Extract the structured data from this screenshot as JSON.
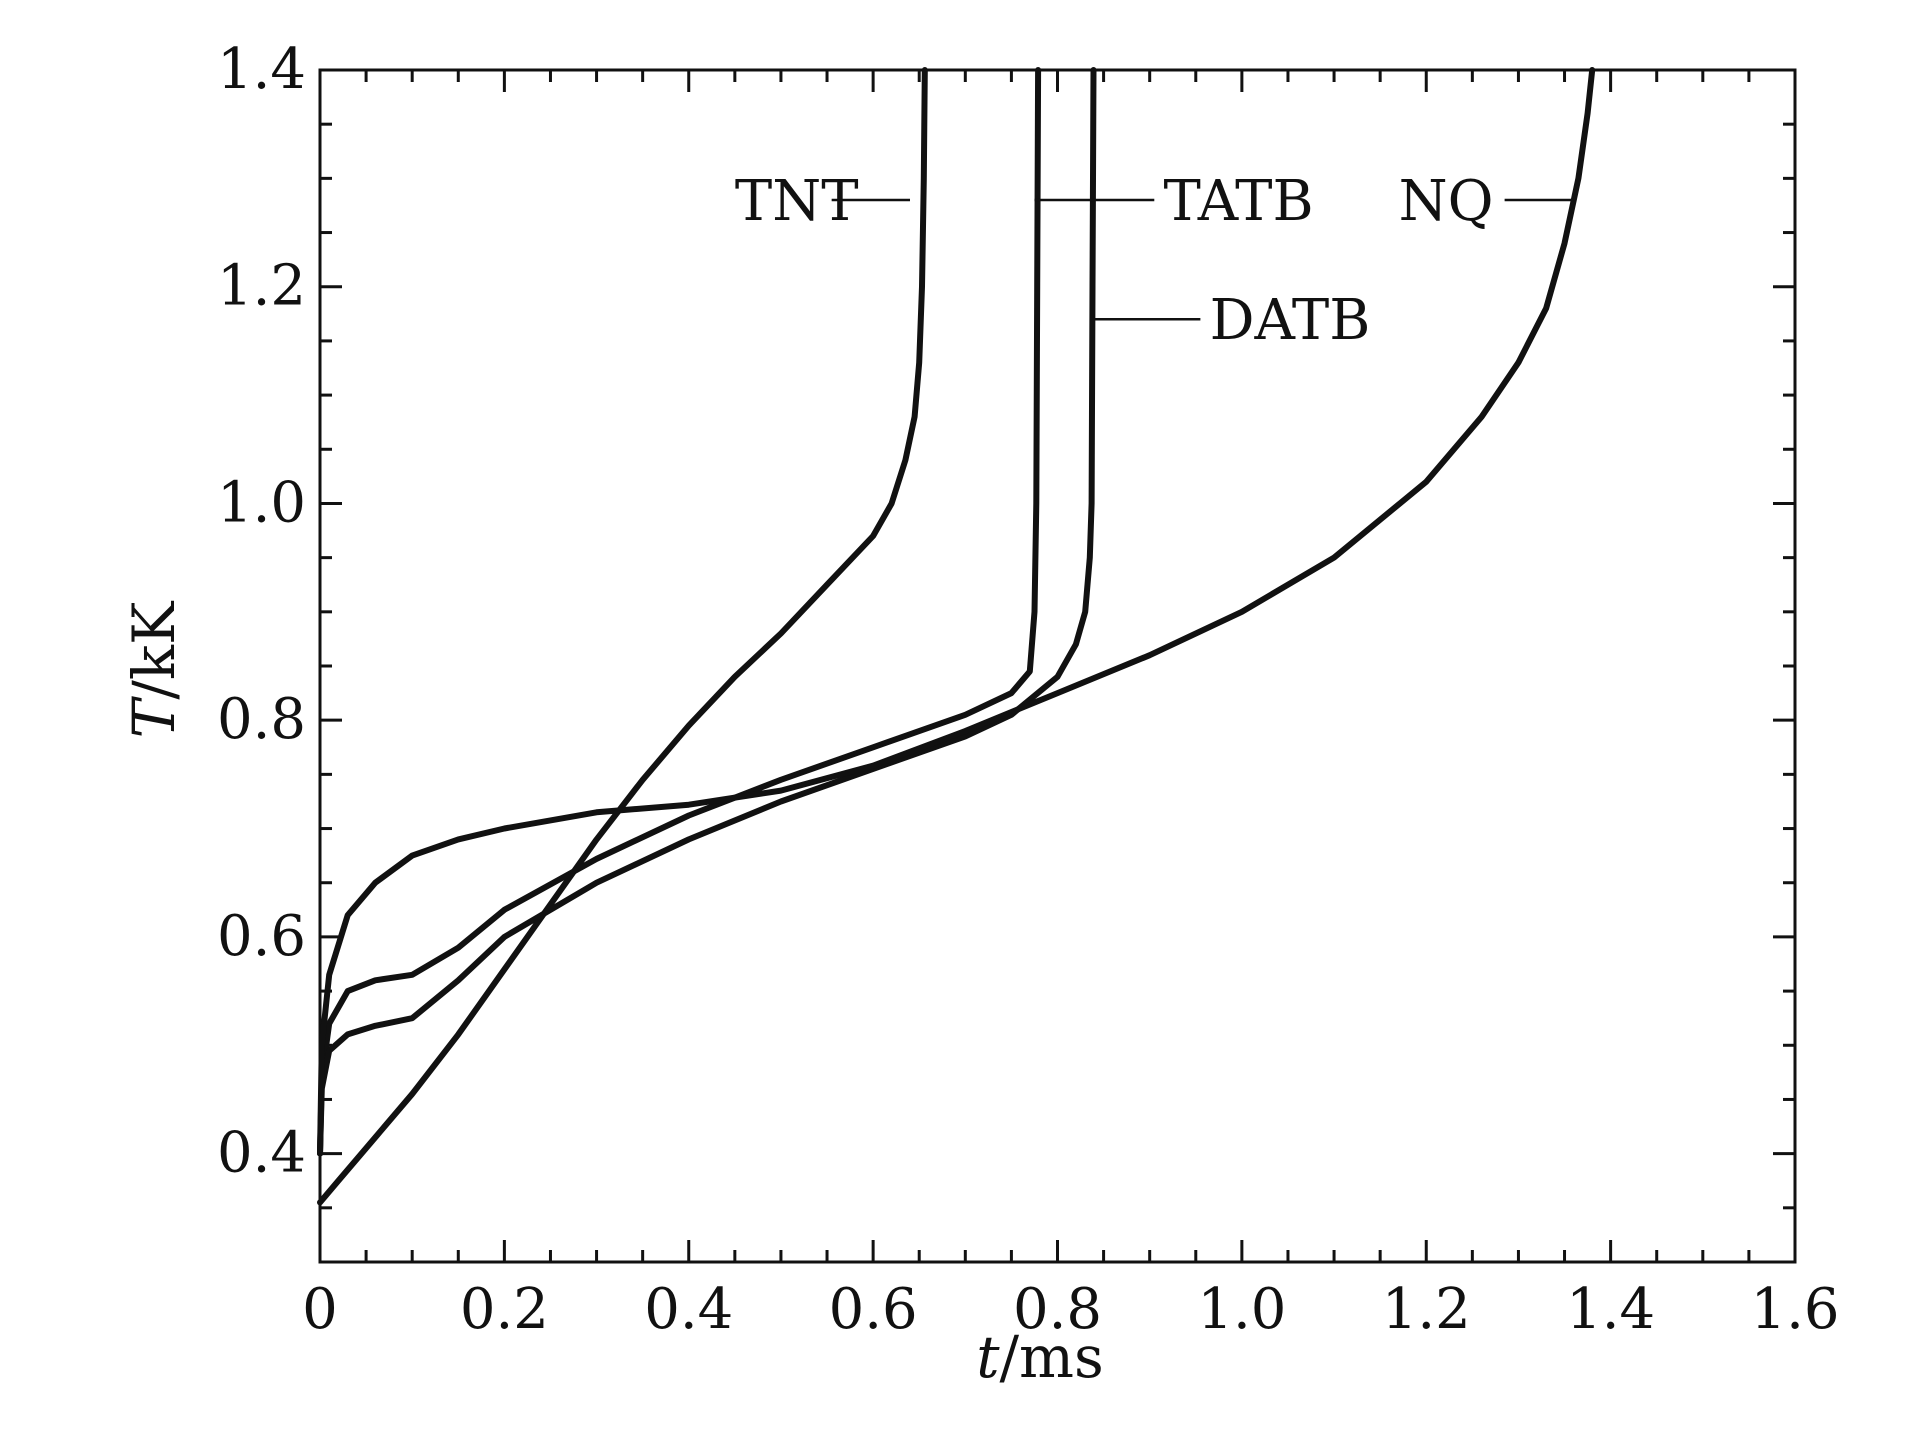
{
  "chart_data": {
    "type": "line",
    "xlabel_var": "t",
    "xlabel_unit": "/ms",
    "ylabel_var": "T",
    "ylabel_unit": "/kK",
    "xlim": [
      0,
      1.6
    ],
    "ylim": [
      0.3,
      1.4
    ],
    "xticks": [
      0,
      0.2,
      0.4,
      0.6,
      0.8,
      1.0,
      1.2,
      1.4,
      1.6
    ],
    "xtick_labels": [
      "0",
      "0.2",
      "0.4",
      "0.6",
      "0.8",
      "1.0",
      "1.2",
      "1.4",
      "1.6"
    ],
    "yticks": [
      0.4,
      0.6,
      0.8,
      1.0,
      1.2,
      1.4
    ],
    "ytick_labels": [
      "0.4",
      "0.6",
      "0.8",
      "1.0",
      "1.2",
      "1.4"
    ],
    "grid": false,
    "line_color": "#111111",
    "series": [
      {
        "name": "TNT",
        "points": [
          [
            0,
            0.355
          ],
          [
            0.02,
            0.375
          ],
          [
            0.05,
            0.405
          ],
          [
            0.1,
            0.455
          ],
          [
            0.15,
            0.51
          ],
          [
            0.2,
            0.57
          ],
          [
            0.25,
            0.63
          ],
          [
            0.3,
            0.69
          ],
          [
            0.35,
            0.745
          ],
          [
            0.4,
            0.795
          ],
          [
            0.45,
            0.84
          ],
          [
            0.5,
            0.88
          ],
          [
            0.55,
            0.925
          ],
          [
            0.6,
            0.97
          ],
          [
            0.62,
            1.0
          ],
          [
            0.635,
            1.04
          ],
          [
            0.645,
            1.08
          ],
          [
            0.65,
            1.13
          ],
          [
            0.653,
            1.2
          ],
          [
            0.655,
            1.3
          ],
          [
            0.656,
            1.4
          ]
        ],
        "label_pos": [
          0.45,
          1.28
        ],
        "leader": [
          [
            0.555,
            1.28
          ],
          [
            0.64,
            1.28
          ]
        ]
      },
      {
        "name": "TATB",
        "points": [
          [
            0,
            0.4
          ],
          [
            0.002,
            0.47
          ],
          [
            0.01,
            0.52
          ],
          [
            0.03,
            0.55
          ],
          [
            0.06,
            0.56
          ],
          [
            0.1,
            0.565
          ],
          [
            0.15,
            0.59
          ],
          [
            0.2,
            0.625
          ],
          [
            0.3,
            0.672
          ],
          [
            0.4,
            0.712
          ],
          [
            0.5,
            0.745
          ],
          [
            0.6,
            0.775
          ],
          [
            0.7,
            0.805
          ],
          [
            0.75,
            0.825
          ],
          [
            0.77,
            0.845
          ],
          [
            0.775,
            0.9
          ],
          [
            0.777,
            1.0
          ],
          [
            0.778,
            1.2
          ],
          [
            0.779,
            1.4
          ]
        ],
        "label_pos": [
          0.915,
          1.28
        ],
        "leader": [
          [
            0.775,
            1.28
          ],
          [
            0.905,
            1.28
          ]
        ]
      },
      {
        "name": "DATB",
        "points": [
          [
            0,
            0.4
          ],
          [
            0.002,
            0.46
          ],
          [
            0.01,
            0.495
          ],
          [
            0.03,
            0.51
          ],
          [
            0.06,
            0.518
          ],
          [
            0.1,
            0.525
          ],
          [
            0.15,
            0.56
          ],
          [
            0.2,
            0.6
          ],
          [
            0.3,
            0.65
          ],
          [
            0.4,
            0.69
          ],
          [
            0.5,
            0.725
          ],
          [
            0.6,
            0.755
          ],
          [
            0.7,
            0.785
          ],
          [
            0.75,
            0.805
          ],
          [
            0.8,
            0.84
          ],
          [
            0.82,
            0.87
          ],
          [
            0.83,
            0.9
          ],
          [
            0.835,
            0.95
          ],
          [
            0.837,
            1.0
          ],
          [
            0.838,
            1.2
          ],
          [
            0.839,
            1.4
          ]
        ],
        "label_pos": [
          0.965,
          1.17
        ],
        "leader": [
          [
            0.84,
            1.17
          ],
          [
            0.955,
            1.17
          ]
        ]
      },
      {
        "name": "NQ",
        "points": [
          [
            0,
            0.4
          ],
          [
            0.002,
            0.5
          ],
          [
            0.01,
            0.565
          ],
          [
            0.03,
            0.62
          ],
          [
            0.06,
            0.65
          ],
          [
            0.1,
            0.675
          ],
          [
            0.15,
            0.69
          ],
          [
            0.2,
            0.7
          ],
          [
            0.3,
            0.715
          ],
          [
            0.4,
            0.722
          ],
          [
            0.5,
            0.735
          ],
          [
            0.6,
            0.758
          ],
          [
            0.7,
            0.79
          ],
          [
            0.8,
            0.825
          ],
          [
            0.9,
            0.86
          ],
          [
            1.0,
            0.9
          ],
          [
            1.1,
            0.95
          ],
          [
            1.2,
            1.02
          ],
          [
            1.26,
            1.08
          ],
          [
            1.3,
            1.13
          ],
          [
            1.33,
            1.18
          ],
          [
            1.35,
            1.24
          ],
          [
            1.365,
            1.3
          ],
          [
            1.375,
            1.36
          ],
          [
            1.38,
            1.4
          ]
        ],
        "label_pos": [
          1.17,
          1.28
        ],
        "leader": [
          [
            1.285,
            1.28
          ],
          [
            1.36,
            1.28
          ]
        ]
      }
    ]
  }
}
